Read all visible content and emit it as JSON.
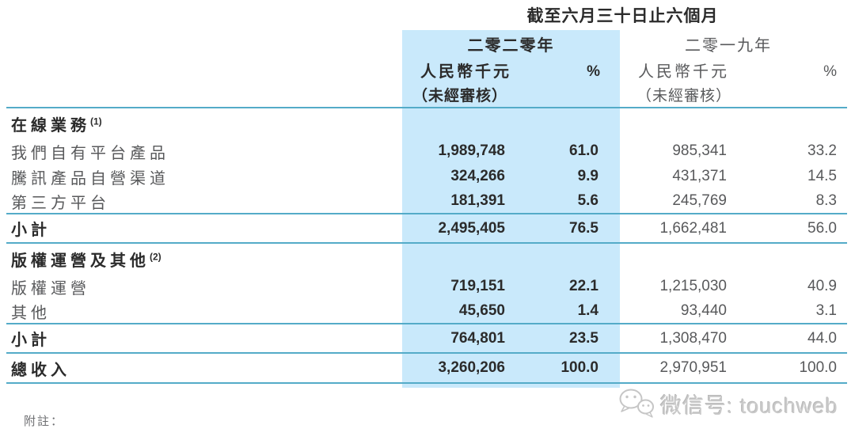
{
  "title": "截至六月三十日止六個月",
  "columns": {
    "y2020": {
      "year": "二零二零年",
      "unit": "人民幣千元",
      "pct": "%",
      "audited": "（未經審核）"
    },
    "y2019": {
      "year": "二零一九年",
      "unit": "人民幣千元",
      "pct": "%",
      "audited": "（未經審核）"
    }
  },
  "table": {
    "rows": [
      {
        "label": "在線業務",
        "sup": "(1)",
        "type": "section",
        "v2020": "",
        "p2020": "",
        "v2019": "",
        "p2019": ""
      },
      {
        "label": "我們自有平台產品",
        "type": "data",
        "v2020": "1,989,748",
        "p2020": "61.0",
        "v2019": "985,341",
        "p2019": "33.2"
      },
      {
        "label": "騰訊產品自營渠道",
        "type": "data",
        "v2020": "324,266",
        "p2020": "9.9",
        "v2019": "431,371",
        "p2019": "14.5"
      },
      {
        "label": "第三方平台",
        "type": "data",
        "v2020": "181,391",
        "p2020": "5.6",
        "v2019": "245,769",
        "p2019": "8.3",
        "rule_below": true
      },
      {
        "label": "小計",
        "type": "subtotal",
        "v2020": "2,495,405",
        "p2020": "76.5",
        "v2019": "1,662,481",
        "p2019": "56.0",
        "rule_below": true
      },
      {
        "label": "版權運營及其他",
        "sup": "(2)",
        "type": "section",
        "v2020": "",
        "p2020": "",
        "v2019": "",
        "p2019": ""
      },
      {
        "label": "版權運營",
        "type": "data",
        "v2020": "719,151",
        "p2020": "22.1",
        "v2019": "1,215,030",
        "p2019": "40.9"
      },
      {
        "label": "其他",
        "type": "data",
        "v2020": "45,650",
        "p2020": "1.4",
        "v2019": "93,440",
        "p2019": "3.1",
        "rule_below": true
      },
      {
        "label": "小計",
        "type": "subtotal",
        "v2020": "764,801",
        "p2020": "23.5",
        "v2019": "1,308,470",
        "p2019": "44.0",
        "rule_below": true
      },
      {
        "label": "總收入",
        "type": "total",
        "v2020": "3,260,206",
        "p2020": "100.0",
        "v2019": "2,970,951",
        "p2019": "100.0",
        "rule_below": true
      }
    ]
  },
  "footer": {
    "note_label": "附註："
  },
  "watermark": {
    "icon": "wechat-icon",
    "text": "微信号: touchweb"
  },
  "colors": {
    "highlight": "#c9e9fb",
    "rule": "#54abc8",
    "text_bold": "#2b2b2b",
    "text_regular": "#58595b",
    "watermark": "#c9c9c9"
  }
}
